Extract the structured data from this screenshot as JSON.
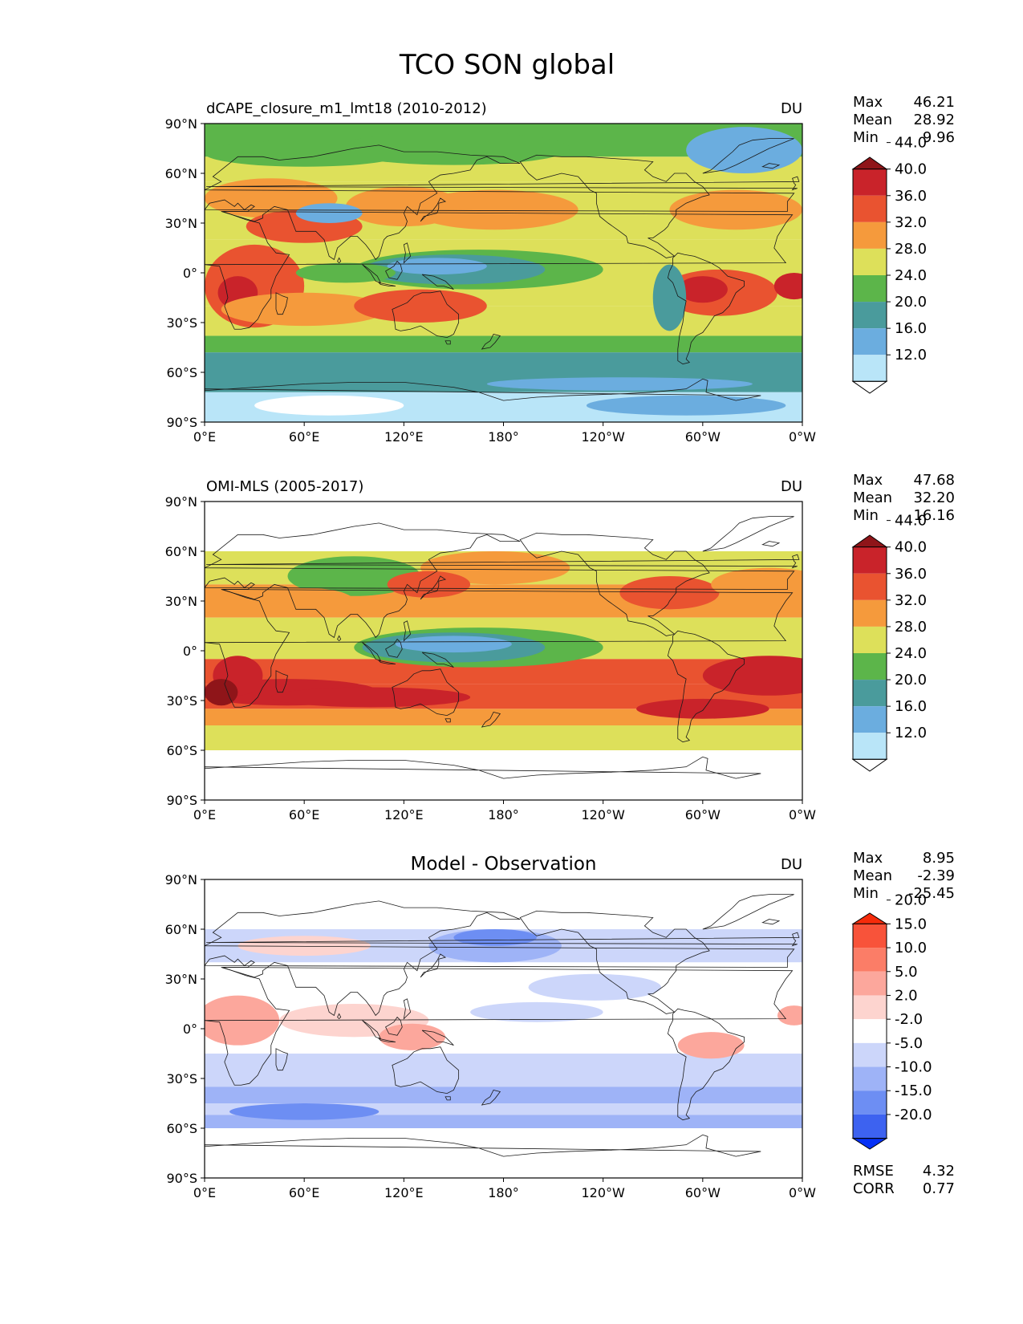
{
  "figure": {
    "title": "TCO SON global"
  },
  "panels": [
    {
      "id": "model",
      "title_left": "dCAPE_closure_m1_lmt18 (2010-2012)",
      "title_center": "",
      "units": "DU",
      "stats": [
        {
          "label": "Max",
          "value": "46.21"
        },
        {
          "label": "Mean",
          "value": "28.92"
        },
        {
          "label": "Min",
          "value": "9.96"
        }
      ],
      "extra_stats": [],
      "lat_ticks": [
        "90°N",
        "60°N",
        "30°N",
        "0°",
        "30°S",
        "60°S",
        "90°S"
      ],
      "lon_ticks": [
        "0°E",
        "60°E",
        "120°E",
        "180°",
        "120°W",
        "60°W",
        "0°W"
      ],
      "colorbar": {
        "colors": [
          "#ffffff",
          "#b9e5f8",
          "#6baddf",
          "#4a9b9c",
          "#5cb54a",
          "#dde05a",
          "#f59a3c",
          "#e95330",
          "#c9232a",
          "#8f1519"
        ],
        "labels": [
          "12.0",
          "16.0",
          "20.0",
          "24.0",
          "28.0",
          "32.0",
          "36.0",
          "40.0",
          "44.0"
        ]
      },
      "coverage": "global"
    },
    {
      "id": "obs",
      "title_left": "OMI-MLS (2005-2017)",
      "title_center": "",
      "units": "DU",
      "stats": [
        {
          "label": "Max",
          "value": "47.68"
        },
        {
          "label": "Mean",
          "value": "32.20"
        },
        {
          "label": "Min",
          "value": "16.16"
        }
      ],
      "extra_stats": [],
      "lat_ticks": [
        "90°N",
        "60°N",
        "30°N",
        "0°",
        "30°S",
        "60°S",
        "90°S"
      ],
      "lon_ticks": [
        "0°E",
        "60°E",
        "120°E",
        "180°",
        "120°W",
        "60°W",
        "0°W"
      ],
      "colorbar": {
        "colors": [
          "#ffffff",
          "#b9e5f8",
          "#6baddf",
          "#4a9b9c",
          "#5cb54a",
          "#dde05a",
          "#f59a3c",
          "#e95330",
          "#c9232a",
          "#8f1519"
        ],
        "labels": [
          "12.0",
          "16.0",
          "20.0",
          "24.0",
          "28.0",
          "32.0",
          "36.0",
          "40.0",
          "44.0"
        ]
      },
      "coverage": "60S-60N"
    },
    {
      "id": "diff",
      "title_left": "",
      "title_center": "Model - Observation",
      "units": "DU",
      "stats": [
        {
          "label": "Max",
          "value": "8.95"
        },
        {
          "label": "Mean",
          "value": "-2.39"
        },
        {
          "label": "Min",
          "value": "-25.45"
        }
      ],
      "extra_stats": [
        {
          "label": "RMSE",
          "value": "4.32"
        },
        {
          "label": "CORR",
          "value": "0.77"
        }
      ],
      "lat_ticks": [
        "90°N",
        "60°N",
        "30°N",
        "0°",
        "30°S",
        "60°S",
        "90°S"
      ],
      "lon_ticks": [
        "0°E",
        "60°E",
        "120°E",
        "180°",
        "120°W",
        "60°W",
        "0°W"
      ],
      "colorbar": {
        "colors": [
          "#0530f5",
          "#3d62f0",
          "#6d8ef3",
          "#9eb3f7",
          "#ccd6fa",
          "#ffffff",
          "#fdd4cf",
          "#fca79c",
          "#fb7d67",
          "#f8533a",
          "#f52b0a"
        ],
        "labels": [
          "-20.0",
          "-15.0",
          "-10.0",
          "-5.0",
          "-2.0",
          "2.0",
          "5.0",
          "10.0",
          "15.0",
          "20.0"
        ]
      },
      "coverage": "60S-60N"
    }
  ]
}
